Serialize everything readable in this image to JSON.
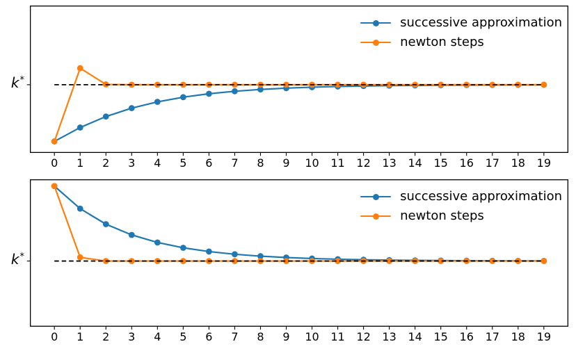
{
  "figure": {
    "background": "#ffffff",
    "text_color": "#000000"
  },
  "chart_data": [
    {
      "type": "line",
      "subplot": "top",
      "title": "",
      "xlabel": "",
      "ylabel_base": "k",
      "ylabel_sup": "*",
      "grid": false,
      "legend_position": "upper right",
      "x": [
        0,
        1,
        2,
        3,
        4,
        5,
        6,
        7,
        8,
        9,
        10,
        11,
        12,
        13,
        14,
        15,
        16,
        17,
        18,
        19
      ],
      "xlim": [
        -0.95,
        19.95
      ],
      "ylim": [
        0.6,
        3.16
      ],
      "k_star": 1.7846,
      "reference_line": {
        "label": "k*",
        "value": 1.7846,
        "style": "dashed",
        "color": "#000000"
      },
      "series": [
        {
          "name": "successive approximation",
          "color": "#1f77b4",
          "marker": "circle",
          "values": [
            0.8,
            1.0412,
            1.232,
            1.378,
            1.4873,
            1.5683,
            1.6278,
            1.6711,
            1.7027,
            1.7255,
            1.7421,
            1.754,
            1.7626,
            1.7689,
            1.7733,
            1.7766,
            1.7789,
            1.7806,
            1.7818,
            1.7827
          ]
        },
        {
          "name": "newton steps",
          "color": "#ff7f0e",
          "marker": "circle",
          "values": [
            0.8,
            2.0722,
            1.7903,
            1.7847,
            1.7846,
            1.7846,
            1.7846,
            1.7846,
            1.7846,
            1.7846,
            1.7846,
            1.7846,
            1.7846,
            1.7846,
            1.7846,
            1.7846,
            1.7846,
            1.7846,
            1.7846,
            1.7846
          ]
        }
      ]
    },
    {
      "type": "line",
      "subplot": "bottom",
      "title": "",
      "xlabel": "",
      "ylabel_base": "k",
      "ylabel_sup": "*",
      "grid": false,
      "legend_position": "upper right",
      "x": [
        0,
        1,
        2,
        3,
        4,
        5,
        6,
        7,
        8,
        9,
        10,
        11,
        12,
        13,
        14,
        15,
        16,
        17,
        18,
        19
      ],
      "xlim": [
        -0.95,
        19.95
      ],
      "ylim": [
        0.72,
        3.11
      ],
      "k_star": 1.7846,
      "reference_line": {
        "label": "k*",
        "value": 1.7846,
        "style": "dashed",
        "color": "#000000"
      },
      "series": [
        {
          "name": "successive approximation",
          "color": "#1f77b4",
          "marker": "circle",
          "values": [
            3.0,
            2.6342,
            2.3829,
            2.2082,
            2.0859,
            1.9996,
            1.9384,
            1.8948,
            1.8637,
            1.8414,
            1.8255,
            1.814,
            1.8058,
            1.7998,
            1.7956,
            1.7925,
            1.7903,
            1.7887,
            1.7876,
            1.7868
          ]
        },
        {
          "name": "newton steps",
          "color": "#ff7f0e",
          "marker": "circle",
          "values": [
            3.0,
            1.8443,
            1.7849,
            1.7846,
            1.7846,
            1.7846,
            1.7846,
            1.7846,
            1.7846,
            1.7846,
            1.7846,
            1.7846,
            1.7846,
            1.7846,
            1.7846,
            1.7846,
            1.7846,
            1.7846,
            1.7846,
            1.7846
          ]
        }
      ]
    }
  ]
}
